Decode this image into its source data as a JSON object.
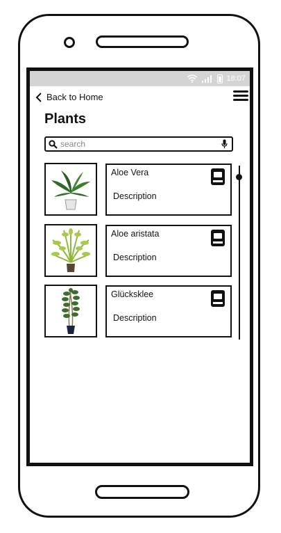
{
  "status_bar": {
    "time": "18:07"
  },
  "nav": {
    "back_label": "Back to Home"
  },
  "page": {
    "title": "Plants"
  },
  "search": {
    "placeholder": "search",
    "value": ""
  },
  "plants": [
    {
      "name": "Aloe Vera",
      "description": "Description"
    },
    {
      "name": "Aloe aristata",
      "description": "Description"
    },
    {
      "name": "Glücksklee",
      "description": "Description"
    }
  ],
  "colors": {
    "status_bar_bg": "#d4d4d4",
    "ink": "#111111",
    "leaf_green": "#3a7d2c",
    "frond_green": "#8fb83a"
  }
}
